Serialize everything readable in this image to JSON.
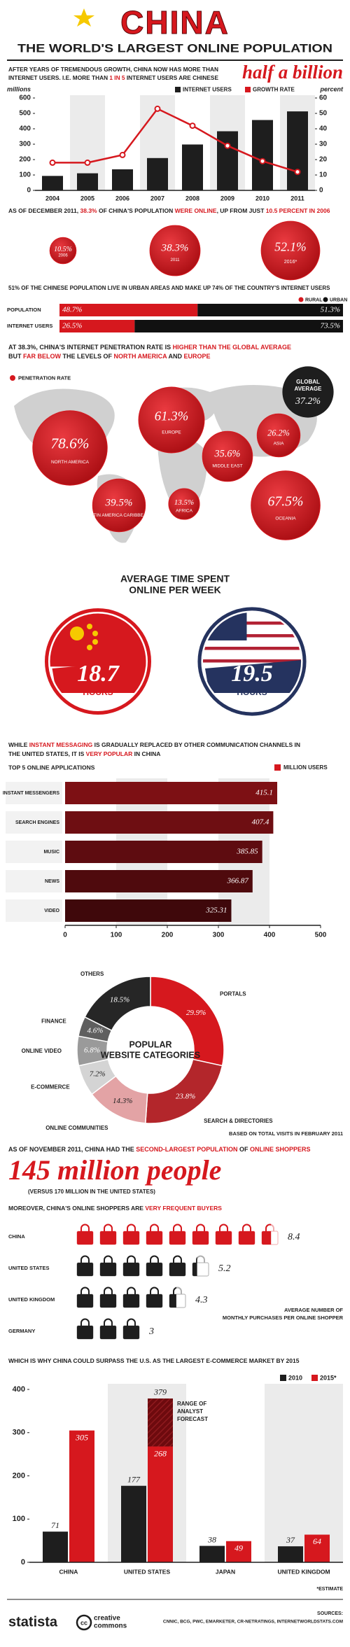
{
  "header": {
    "title": "CHINA",
    "subtitle": "THE WORLD'S LARGEST ONLINE POPULATION"
  },
  "texts": {
    "intro": [
      [
        "AFTER YEARS OF TREMENDOUS GROWTH, CHINA NOW HAS MORE THAN"
      ],
      [
        "INTERNET USERS. I.E. MORE THAN ",
        "1 IN 5",
        " INTERNET USERS ARE CHINESE"
      ]
    ],
    "intro_highlight": "half a billion",
    "online_share": [
      [
        "AS OF DECEMBER 2011, ",
        "38.3%",
        " OF CHINA'S POPULATION ",
        "WERE ONLINE",
        ", UP FROM JUST ",
        "10.5 PERCENT IN 2006"
      ]
    ],
    "urban": [
      [
        "51% OF THE CHINESE POPULATION LIVE IN URBAN AREAS AND MAKE UP 74% OF THE COUNTRY'S INTERNET USERS"
      ]
    ],
    "penetration": [
      [
        "AT 38.3%, CHINA'S INTERNET PENETRATION RATE IS ",
        "HIGHER THAN THE GLOBAL AVERAGE"
      ],
      [
        "BUT ",
        "FAR BELOW",
        " THE LEVELS OF ",
        "NORTH AMERICA",
        " AND ",
        "EUROPE"
      ]
    ],
    "messaging": [
      [
        "WHILE ",
        "INSTANT MESSAGING",
        " IS GRADUALLY REPLACED BY OTHER COMMUNICATION CHANNELS IN"
      ],
      [
        "THE UNITED STATES, IT IS ",
        "VERY POPULAR",
        " IN CHINA"
      ]
    ],
    "shoppers": [
      [
        "AS OF NOVEMBER 2011, CHINA HAD THE ",
        "SECOND-LARGEST POPULATION",
        " OF ",
        "ONLINE SHOPPERS"
      ]
    ],
    "shoppers_highlight": "145 million people",
    "shoppers_note": "(VERSUS 170 MILLION IN THE UNITED STATES)",
    "buyers": [
      [
        "MOREOVER, CHINA'S ONLINE SHOPPERS ARE ",
        "VERY FREQUENT BUYERS"
      ]
    ],
    "surpass": [
      [
        "WHICH IS WHY CHINA COULD SURPASS THE U.S. AS THE LARGEST E-COMMERCE MARKET BY 2015"
      ]
    ]
  },
  "chart_data": [
    {
      "type": "bar_line",
      "y_label": "millions",
      "y2_label": "percent",
      "categories": [
        "2004",
        "2005",
        "2006",
        "2007",
        "2008",
        "2009",
        "2010",
        "2011"
      ],
      "series": [
        {
          "name": "INTERNET USERS",
          "color": "#1e1e1e",
          "values": [
            94,
            111,
            137,
            210,
            298,
            384,
            457,
            513
          ]
        },
        {
          "name": "GROWTH RATE",
          "color": "#d6181e",
          "axis": "y2",
          "values": [
            18,
            18,
            23,
            53,
            42,
            29,
            19,
            12
          ]
        }
      ],
      "ylim": [
        0,
        600
      ],
      "yticks": [
        0,
        100,
        200,
        300,
        400,
        500,
        600
      ],
      "y2lim": [
        0,
        60
      ],
      "y2ticks": [
        0,
        10,
        20,
        30,
        40,
        50,
        60
      ]
    },
    {
      "type": "bubble",
      "categories": [
        "2006",
        "2011",
        "2016*"
      ],
      "values": [
        10.5,
        38.3,
        52.1
      ],
      "value_labels": [
        "10.5%",
        "38.3%",
        "52.1%"
      ],
      "color": "#d6181e"
    },
    {
      "type": "stacked_bar_h",
      "categories": [
        "POPULATION",
        "INTERNET USERS"
      ],
      "xlim": [
        0,
        100
      ],
      "series": [
        {
          "name": "RURAL",
          "color": "#d6181e",
          "values": [
            48.7,
            26.5
          ],
          "value_labels": [
            "48.7%",
            "26.5%"
          ]
        },
        {
          "name": "URBAN",
          "color": "#111111",
          "values": [
            51.3,
            73.5
          ],
          "value_labels": [
            "51.3%",
            "73.5%"
          ]
        }
      ]
    },
    {
      "type": "bubble_map",
      "legend": "PENETRATION RATE",
      "color": "#d6181e",
      "categories": [
        "NORTH AMERICA",
        "EUROPE",
        "MIDDLE EAST",
        "ASIA",
        "LATIN AMERICA CARIBBEAN",
        "AFRICA",
        "OCEANIA"
      ],
      "values": [
        78.6,
        61.3,
        35.6,
        26.2,
        39.5,
        13.5,
        67.5
      ],
      "value_labels": [
        "78.6%",
        "61.3%",
        "35.6%",
        "26.2%",
        "39.5%",
        "13.5%",
        "67.5%"
      ],
      "reference": {
        "label": [
          "GLOBAL",
          "AVERAGE"
        ],
        "value": 37.2,
        "value_label": "37.2%"
      }
    },
    {
      "type": "bubble",
      "title": [
        "AVERAGE TIME SPENT",
        "ONLINE PER WEEK"
      ],
      "values": [
        18.7,
        19.5
      ],
      "unit": "HOURS"
    },
    {
      "type": "bar_h",
      "title": "TOP 5 ONLINE APPLICATIONS",
      "categories": [
        "INSTANT MESSENGERS",
        "SEARCH ENGINES",
        "MUSIC",
        "NEWS",
        "VIDEO"
      ],
      "series": [
        {
          "name": "MILLION USERS",
          "color": "#d6181e",
          "values": [
            415.1,
            407.4,
            385.85,
            366.87,
            325.31
          ]
        }
      ],
      "bar_colors": [
        "#7d1014",
        "#6e0e12",
        "#5e0c10",
        "#4f0a0d",
        "#3f080b"
      ],
      "xlim": [
        0,
        500
      ],
      "xticks": [
        0,
        100,
        200,
        300,
        400,
        500
      ]
    },
    {
      "type": "donut",
      "title": [
        "POPULAR",
        "WEBSITE CATEGORIES"
      ],
      "note": "BASED ON TOTAL VISITS IN FEBRUARY 2011",
      "categories": [
        "PORTALS",
        "SEARCH & DIRECTORIES",
        "ONLINE COMMUNITIES",
        "E-COMMERCE",
        "ONLINE VIDEO",
        "FINANCE",
        "OTHERS"
      ],
      "values": [
        29.9,
        23.8,
        14.3,
        7.2,
        6.8,
        4.6,
        18.5
      ],
      "value_labels": [
        "29.9%",
        "23.8%",
        "14.3%",
        "7.2%",
        "6.8%",
        "4.6%",
        "18.5%"
      ],
      "colors": [
        "#d6181e",
        "#b3262b",
        "#e3a3a5",
        "#d4d4d4",
        "#9a9a9a",
        "#5f5f5f",
        "#262626"
      ]
    },
    {
      "type": "pictogram",
      "note": [
        "AVERAGE NUMBER OF",
        "MONTHLY PURCHASES PER ONLINE SHOPPER"
      ],
      "categories": [
        "CHINA",
        "UNITED STATES",
        "UNITED KINGDOM",
        "GERMANY"
      ],
      "values": [
        8.4,
        5.2,
        4.3,
        3
      ],
      "colors": [
        "#d6181e",
        "#1e1e1e",
        "#1e1e1e",
        "#1e1e1e"
      ]
    },
    {
      "type": "grouped_bar",
      "categories": [
        "CHINA",
        "UNITED STATES",
        "JAPAN",
        "UNITED KINGDOM"
      ],
      "series": [
        {
          "name": "2010",
          "color": "#1e1e1e",
          "values": [
            71,
            177,
            38,
            37
          ]
        },
        {
          "name": "2015*",
          "color": "#d6181e",
          "values": [
            305,
            268,
            49,
            64
          ],
          "upper": [
            null,
            379,
            null,
            null
          ]
        }
      ],
      "range_label": [
        "RANGE OF",
        "ANALYST",
        "FORECAST"
      ],
      "note": "*ESTIMATE",
      "ylim": [
        0,
        400
      ],
      "yticks": [
        0,
        100,
        200,
        300,
        400
      ]
    }
  ],
  "footer": {
    "brand": "statista",
    "license": [
      "creative",
      "commons"
    ],
    "sources_label": "SOURCES:",
    "sources": "CNNIC, BCG, PWC, EMARKETER, CR-NETRATINGS, INTERNETWORLDSTATS.COM"
  }
}
